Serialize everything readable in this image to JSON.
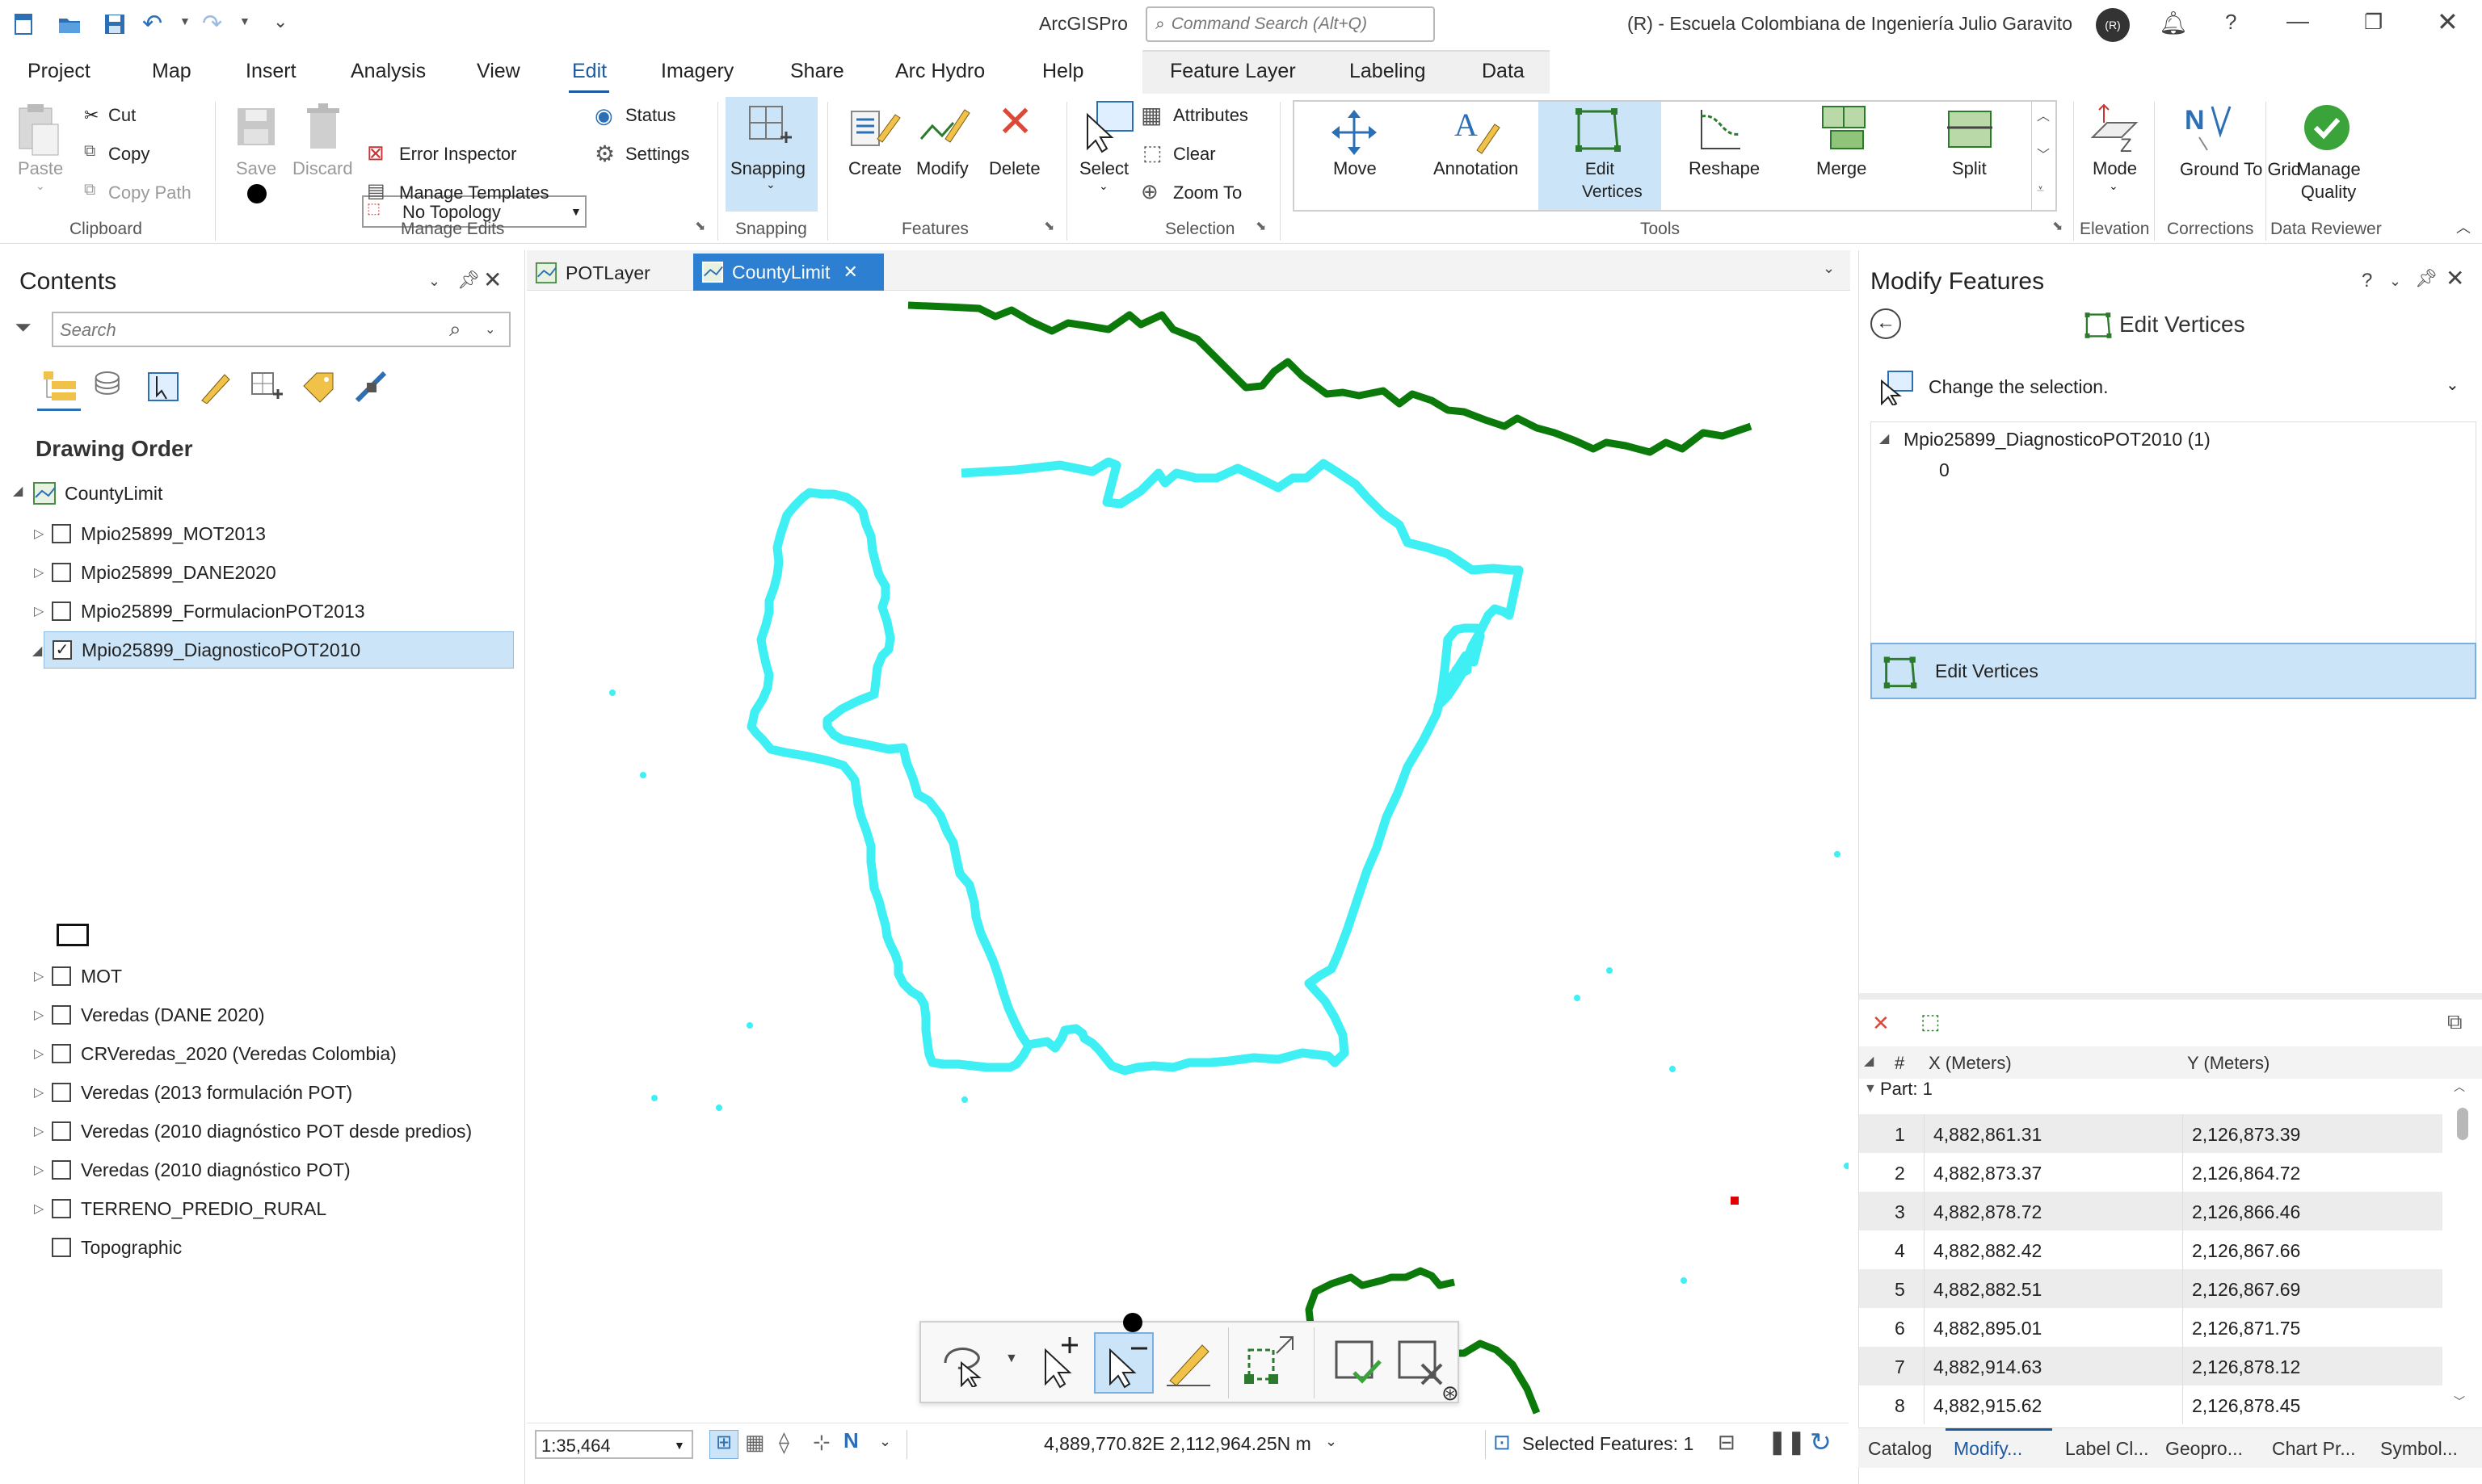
{
  "titlebar": {
    "app_title": "ArcGISPro",
    "command_search_placeholder": "Command Search (Alt+Q)",
    "org_text": "(R) - Escuela Colombiana de Ingeniería Julio Garavito",
    "avatar_initials": "(R)"
  },
  "menu_tabs": [
    {
      "label": "Project"
    },
    {
      "label": "Map"
    },
    {
      "label": "Insert"
    },
    {
      "label": "Analysis"
    },
    {
      "label": "View"
    },
    {
      "label": "Edit"
    },
    {
      "label": "Imagery"
    },
    {
      "label": "Share"
    },
    {
      "label": "Arc Hydro"
    },
    {
      "label": "Help"
    }
  ],
  "context_tabs": [
    {
      "label": "Feature Layer"
    },
    {
      "label": "Labeling"
    },
    {
      "label": "Data"
    }
  ],
  "ribbon": {
    "clipboard": {
      "paste": "Paste",
      "cut": "Cut",
      "copy": "Copy",
      "copy_path": "Copy Path",
      "group": "Clipboard"
    },
    "manage_edits": {
      "save": "Save",
      "discard": "Discard",
      "topology": "No Topology",
      "status": "Status",
      "error_inspector": "Error Inspector",
      "settings": "Settings",
      "manage_templates": "Manage Templates",
      "group": "Manage Edits"
    },
    "snapping": {
      "label": "Snapping",
      "group": "Snapping"
    },
    "features": {
      "create": "Create",
      "modify": "Modify",
      "delete": "Delete",
      "group": "Features"
    },
    "selection": {
      "select": "Select",
      "attributes": "Attributes",
      "clear": "Clear",
      "zoom_to": "Zoom To",
      "group": "Selection"
    },
    "tools": {
      "move": "Move",
      "annotation": "Annotation",
      "edit_vertices": "Edit Vertices",
      "reshape": "Reshape",
      "merge": "Merge",
      "split": "Split",
      "group": "Tools"
    },
    "elevation": {
      "mode": "Mode",
      "group": "Elevation"
    },
    "corrections": {
      "ground_to_grid": "Ground To Grid",
      "group": "Corrections"
    },
    "data_reviewer": {
      "manage_quality": "Manage Quality",
      "group": "Data Reviewer"
    }
  },
  "contents": {
    "title": "Contents",
    "search_placeholder": "Search",
    "section": "Drawing Order",
    "map_name": "CountyLimit",
    "layers": [
      {
        "label": "Mpio25899_MOT2013",
        "checked": false
      },
      {
        "label": "Mpio25899_DANE2020",
        "checked": false
      },
      {
        "label": "Mpio25899_FormulacionPOT2013",
        "checked": false
      },
      {
        "label": "Mpio25899_DiagnosticoPOT2010",
        "checked": true
      },
      {
        "label": "MOT",
        "checked": false
      },
      {
        "label": "Veredas (DANE 2020)",
        "checked": false
      },
      {
        "label": "CRVeredas_2020 (Veredas Colombia)",
        "checked": false
      },
      {
        "label": "Veredas (2013 formulación POT)",
        "checked": false
      },
      {
        "label": "Veredas (2010 diagnóstico POT desde predios)",
        "checked": false
      },
      {
        "label": "Veredas (2010 diagnóstico POT)",
        "checked": false
      },
      {
        "label": "TERRENO_PREDIO_RURAL",
        "checked": false
      },
      {
        "label": "Topographic",
        "checked": false
      }
    ]
  },
  "map": {
    "tabs": [
      {
        "label": "POTLayer"
      },
      {
        "label": "CountyLimit"
      }
    ],
    "scale": "1:35,464",
    "coordinates": "4,889,770.82E 2,112,964.25N m",
    "selected_features": "Selected Features: 1",
    "colors": {
      "boundary": "#3ef0f4",
      "river": "#0b7a0b",
      "selection_point": "#e00000"
    }
  },
  "modify_features": {
    "title": "Modify Features",
    "tool_title": "Edit Vertices",
    "change_selection": "Change the selection.",
    "tree_layer": "Mpio25899_DiagnosticoPOT2010 (1)",
    "tree_feature": "0",
    "tool_item": "Edit Vertices",
    "table_headers": {
      "num": "#",
      "x": "X (Meters)",
      "y": "Y (Meters)"
    },
    "part_label": "Part: 1",
    "vertices": [
      {
        "n": "1",
        "x": "4,882,861.31",
        "y": "2,126,873.39"
      },
      {
        "n": "2",
        "x": "4,882,873.37",
        "y": "2,126,864.72"
      },
      {
        "n": "3",
        "x": "4,882,878.72",
        "y": "2,126,866.46"
      },
      {
        "n": "4",
        "x": "4,882,882.42",
        "y": "2,126,867.66"
      },
      {
        "n": "5",
        "x": "4,882,882.51",
        "y": "2,126,867.69"
      },
      {
        "n": "6",
        "x": "4,882,895.01",
        "y": "2,126,871.75"
      },
      {
        "n": "7",
        "x": "4,882,914.63",
        "y": "2,126,878.12"
      },
      {
        "n": "8",
        "x": "4,882,915.62",
        "y": "2,126,878.45"
      }
    ]
  },
  "bottom_tabs": [
    {
      "label": "Catalog"
    },
    {
      "label": "Modify..."
    },
    {
      "label": "Label Cl..."
    },
    {
      "label": "Geopro..."
    },
    {
      "label": "Chart Pr..."
    },
    {
      "label": "Symbol..."
    }
  ]
}
